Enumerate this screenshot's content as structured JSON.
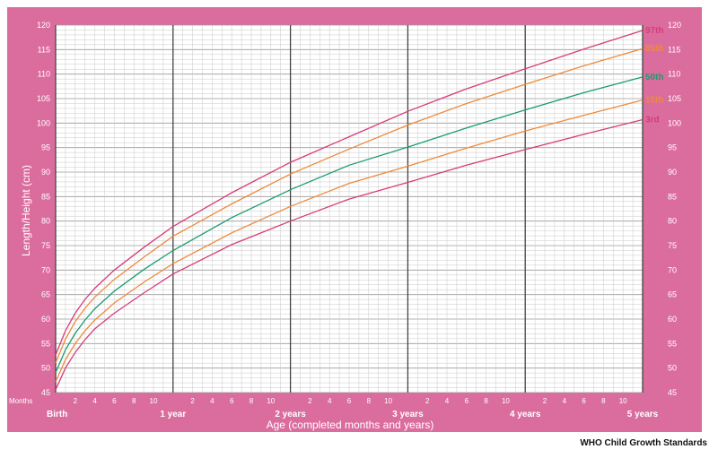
{
  "chart_data": {
    "type": "line",
    "xlabel": "Age (completed months and years)",
    "ylabel": "Length/Height (cm)",
    "xlim": [
      0,
      60
    ],
    "ylim": [
      45,
      120
    ],
    "y_ticks": [
      45,
      50,
      55,
      60,
      65,
      70,
      75,
      80,
      85,
      90,
      95,
      100,
      105,
      110,
      115,
      120
    ],
    "month_ticks": [
      "2",
      "4",
      "6",
      "8",
      "10"
    ],
    "months_label": "Months",
    "year_labels": [
      {
        "month": 0,
        "label": "Birth"
      },
      {
        "month": 12,
        "label": "1 year"
      },
      {
        "month": 24,
        "label": "2 years"
      },
      {
        "month": 36,
        "label": "3 years"
      },
      {
        "month": 48,
        "label": "4 years"
      },
      {
        "month": 60,
        "label": "5 years"
      }
    ],
    "x": [
      0,
      1,
      2,
      3,
      4,
      6,
      9,
      12,
      18,
      24,
      30,
      36,
      42,
      48,
      54,
      60
    ],
    "series": [
      {
        "name": "97th",
        "color": "#d63c7a",
        "values": [
          52.7,
          57.6,
          61.2,
          64.0,
          66.3,
          70.0,
          74.6,
          78.9,
          85.8,
          92.0,
          97.2,
          102.4,
          107.0,
          111.1,
          115.1,
          118.9
        ]
      },
      {
        "name": "85th",
        "color": "#ee8a3a",
        "values": [
          51.1,
          55.9,
          59.5,
          62.2,
          64.5,
          68.1,
          72.6,
          76.9,
          83.5,
          89.6,
          94.7,
          99.6,
          104.0,
          107.9,
          111.7,
          115.2
        ]
      },
      {
        "name": "50th",
        "color": "#1a9c6e",
        "values": [
          49.1,
          53.7,
          57.1,
          59.8,
          62.1,
          65.7,
          70.1,
          74.0,
          80.7,
          86.4,
          91.4,
          95.1,
          99.0,
          102.7,
          106.2,
          109.4
        ]
      },
      {
        "name": "15th",
        "color": "#ee8a3a",
        "values": [
          47.2,
          51.7,
          55.0,
          57.6,
          59.8,
          63.3,
          67.5,
          71.3,
          77.6,
          83.0,
          87.7,
          91.2,
          94.9,
          98.4,
          101.6,
          104.7
        ]
      },
      {
        "name": "3rd",
        "color": "#d63c7a",
        "values": [
          45.6,
          50.0,
          53.2,
          55.8,
          58.0,
          61.2,
          65.3,
          69.2,
          75.2,
          80.0,
          84.5,
          87.9,
          91.4,
          94.6,
          97.7,
          100.7
        ]
      }
    ]
  },
  "colors": {
    "frame": "#db6d9e",
    "plot_bg": "#ffffff",
    "minor_grid": "#c8c8c8",
    "year_line": "#444444"
  },
  "footer": {
    "credit": "WHO Child Growth Standards"
  }
}
